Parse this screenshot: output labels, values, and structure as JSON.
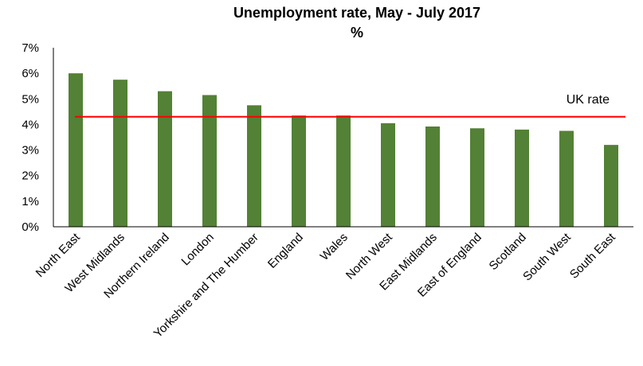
{
  "chart_data": {
    "type": "bar",
    "title": "Unemployment rate, May - July 2017",
    "subtitle": "%",
    "xlabel": "",
    "ylabel": "",
    "ylim": [
      0,
      7
    ],
    "yticks": [
      "0%",
      "1%",
      "2%",
      "3%",
      "4%",
      "5%",
      "6%",
      "7%"
    ],
    "categories": [
      "North East",
      "West Midlands",
      "Northern Ireland",
      "London",
      "Yorkshire and The Humber",
      "England",
      "Wales",
      "North West",
      "East Midlands",
      "East of England",
      "Scotland",
      "South West",
      "South East"
    ],
    "values": [
      6.0,
      5.75,
      5.3,
      5.15,
      4.75,
      4.35,
      4.35,
      4.05,
      3.92,
      3.85,
      3.8,
      3.75,
      3.2
    ],
    "reference_line": {
      "label": "UK rate",
      "value": 4.3
    },
    "grid": false,
    "legend": "none",
    "colors": {
      "bar": "#538135",
      "reference_line": "#ff0000",
      "axis": "#000000"
    }
  }
}
